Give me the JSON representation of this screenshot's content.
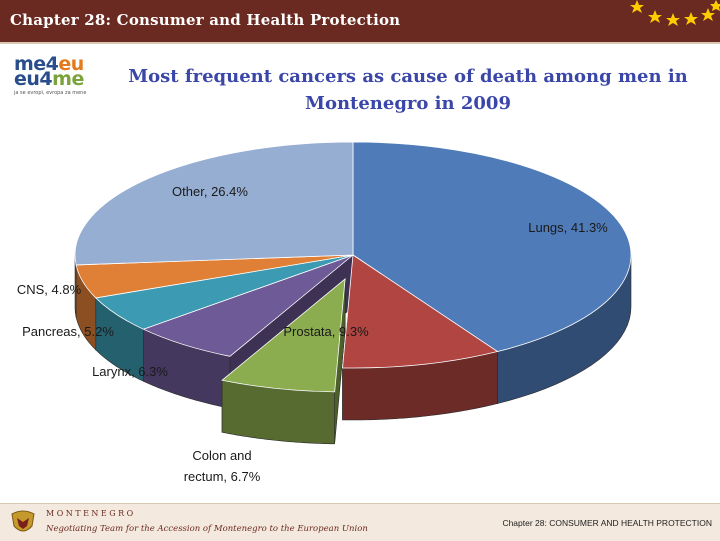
{
  "header": {
    "title": "Chapter 28: Consumer and Health Protection",
    "stars_icon": "eu-stars-icon"
  },
  "logo": {
    "line1_a": "me4",
    "line1_b": "eu",
    "line2_a": "eu4",
    "line2_b": "me",
    "tagline": "ja se evropi, evropa za mene"
  },
  "colors": {
    "header": "#6b2a21",
    "title": "#3a47a8",
    "lungs": "#4f7bb8",
    "prostata": "#b04541",
    "colon": "#8cad4f",
    "larynx": "#6e5a97",
    "pancreas": "#3c9bb3",
    "cns": "#e07f36",
    "other": "#97aed3"
  },
  "chart_data": {
    "type": "pie",
    "title": "Most frequent cancers as cause of death among men in Montenegro in 2009",
    "three_d": true,
    "exploded": [
      "Colon and rectum"
    ],
    "slices": [
      {
        "label": "Lungs",
        "value": 41.3,
        "label_text": "Lungs, 41.3%"
      },
      {
        "label": "Prostata",
        "value": 9.3,
        "label_text": "Prostata, 9.3%"
      },
      {
        "label": "Colon and rectum",
        "value": 6.7,
        "label_text": "Colon and rectum, 6.7%"
      },
      {
        "label": "Larynx",
        "value": 6.3,
        "label_text": "Larynx, 6.3%"
      },
      {
        "label": "Pancreas",
        "value": 5.2,
        "label_text": "Pancreas, 5.2%"
      },
      {
        "label": "CNS",
        "value": 4.8,
        "label_text": "CNS, 4.8%"
      },
      {
        "label": "Other",
        "value": 26.4,
        "label_text": "Other, 26.4%"
      }
    ]
  },
  "footer": {
    "country": "MONTENEGRO",
    "negotiating": "Negotiating Team for the Accession of Montenegro to the European Union",
    "chapter": "Chapter 28: CONSUMER AND HEALTH PROTECTION",
    "crest_icon": "montenegro-crest-icon"
  }
}
